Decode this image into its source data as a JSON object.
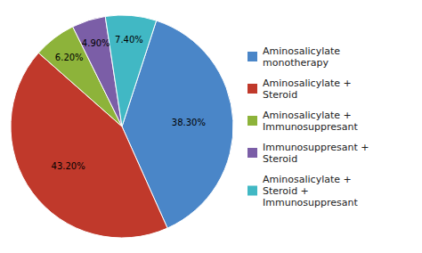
{
  "chart_data": {
    "type": "pie",
    "categories": [
      "Aminosalicylate\nmonotherapy",
      "Aminosalicylate +\nSteroid",
      "Aminosalicylate +\nImmunosuppresant",
      "Immunosuppresant +\nSteroid",
      "Aminosalicylate +\nSteroid +\nImmunosuppresant"
    ],
    "values": [
      38.3,
      43.2,
      6.2,
      4.9,
      7.4
    ],
    "value_labels": [
      "38.30%",
      "43.20%",
      "6.20%",
      "4.90%",
      "7.40%"
    ],
    "colors": [
      "#4a86c8",
      "#c0392b",
      "#8db33a",
      "#7b5ea7",
      "#41b8c4"
    ],
    "data_labels": true,
    "legend": "right"
  }
}
